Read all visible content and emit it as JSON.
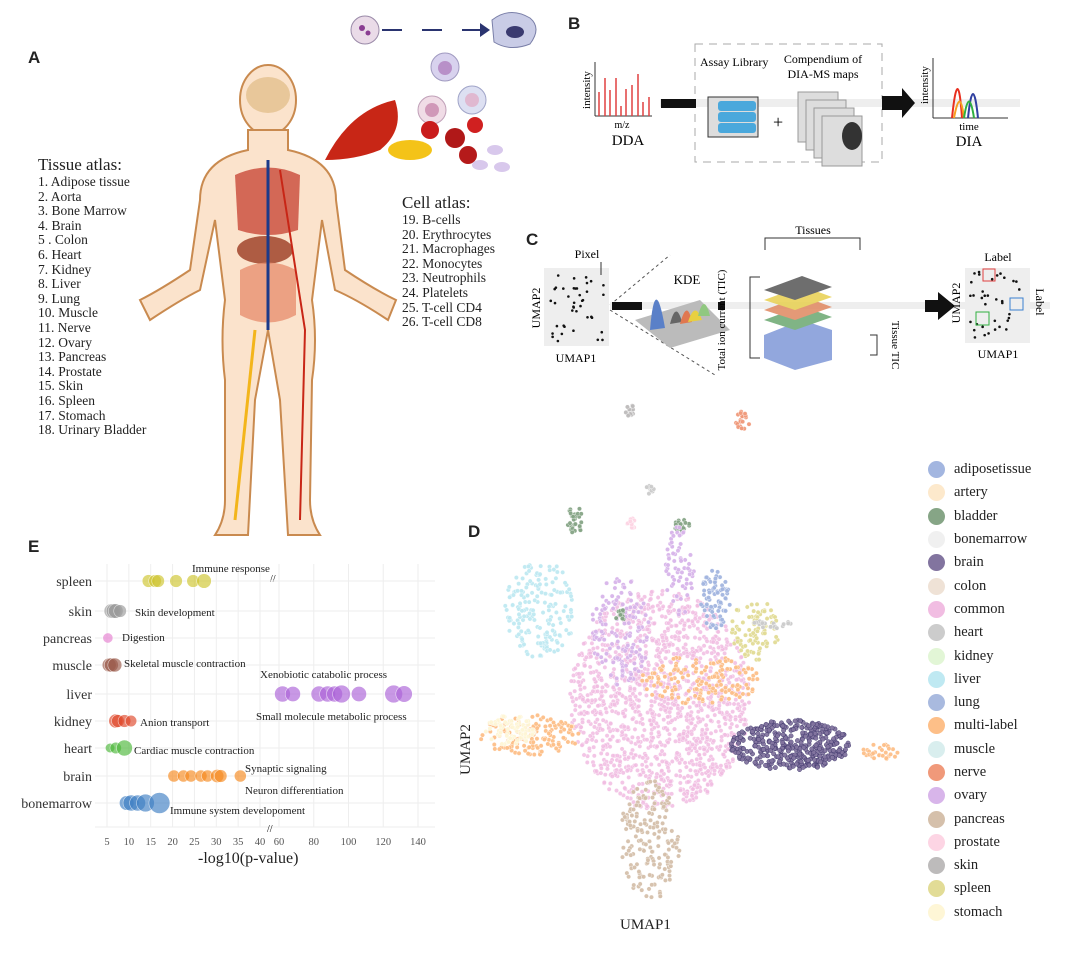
{
  "panel_labels": {
    "a": "A",
    "b": "B",
    "c": "C",
    "d": "D",
    "e": "E"
  },
  "tissue_atlas": {
    "title": "Tissue atlas:",
    "items": [
      "1.   Adipose tissue",
      "2.   Aorta",
      "3.   Bone Marrow",
      "4.   Brain",
      "5   . Colon",
      "6.   Heart",
      "7.   Kidney",
      "8.   Liver",
      "9.   Lung",
      "10. Muscle",
      "11. Nerve",
      "12. Ovary",
      "13. Pancreas",
      "14. Prostate",
      "15. Skin",
      "16. Spleen",
      "17. Stomach",
      "18. Urinary Bladder"
    ]
  },
  "cell_atlas": {
    "title": "Cell atlas:",
    "items": [
      "19. B-cells",
      "20. Erythrocytes",
      "21. Macrophages",
      "22. Monocytes",
      "23. Neutrophils",
      "24. Platelets",
      "25. T-cell CD4",
      "26. T-cell CD8"
    ]
  },
  "panel_b": {
    "dda_ylabel": "intensity",
    "dda_xlabel": "m/z",
    "dda_title": "DDA",
    "assay_library": "Assay Library",
    "compendium": "Compendium of",
    "compendium2": "DIA-MS maps",
    "dia_ylabel": "intensity",
    "dia_xlabel": "time",
    "dia_title": "DIA"
  },
  "panel_c": {
    "pixel": "Pixel",
    "umap1": "UMAP1",
    "umap2": "UMAP2",
    "kde": "KDE",
    "tissues": "Tissues",
    "tic": "Total ion current (TIC)",
    "tissue_tic": "Tissue TIC",
    "label_top": "Label",
    "label_side": "Label",
    "umap1_out": "UMAP1",
    "umap2_out": "UMAP2"
  },
  "panel_d": {
    "xlabel": "UMAP1",
    "ylabel": "UMAP2",
    "legend": [
      {
        "name": "adiposetissue",
        "color": "#a3b6e0"
      },
      {
        "name": "artery",
        "color": "#fde9cc"
      },
      {
        "name": "bladder",
        "color": "#86a586"
      },
      {
        "name": "bonemarrow",
        "color": "#f0f0f0"
      },
      {
        "name": "brain",
        "color": "#82749f"
      },
      {
        "name": "colon",
        "color": "#efe2d6"
      },
      {
        "name": "common",
        "color": "#f1bde2"
      },
      {
        "name": "heart",
        "color": "#cccccc"
      },
      {
        "name": "kidney",
        "color": "#e2f6d6"
      },
      {
        "name": "liver",
        "color": "#bfe9f2"
      },
      {
        "name": "lung",
        "color": "#a9badf"
      },
      {
        "name": "multi-label",
        "color": "#fdbf88"
      },
      {
        "name": "muscle",
        "color": "#d9eeee"
      },
      {
        "name": "nerve",
        "color": "#f0997a"
      },
      {
        "name": "ovary",
        "color": "#d8b5ea"
      },
      {
        "name": "pancreas",
        "color": "#d5c0ab"
      },
      {
        "name": "prostate",
        "color": "#fdd5e4"
      },
      {
        "name": "skin",
        "color": "#bdbbbb"
      },
      {
        "name": "spleen",
        "color": "#e2dc96"
      },
      {
        "name": "stomach",
        "color": "#fef6d6"
      }
    ]
  },
  "chart_data": {
    "type": "scatter",
    "xlabel": "-log10(p-value)",
    "axis_break": [
      40,
      60
    ],
    "x_ticks": [
      5,
      10,
      15,
      20,
      25,
      30,
      35,
      40,
      60,
      80,
      100,
      120,
      140
    ],
    "categories": [
      "spleen",
      "skin",
      "pancreas",
      "muscle",
      "liver",
      "kidney",
      "heart",
      "brain",
      "bonemarrow"
    ],
    "series": [
      {
        "category": "spleen",
        "color": "#cfc52e",
        "x": [
          14.5,
          16,
          16.7,
          20.8,
          24.7,
          27.2
        ],
        "size": [
          2,
          2,
          2,
          2,
          2,
          2.3
        ],
        "annotations": [
          "Immune response"
        ]
      },
      {
        "category": "skin",
        "color": "#9a9a9a",
        "x": [
          6,
          6.5,
          7,
          8
        ],
        "size": [
          2.3,
          2.3,
          2.3,
          2
        ],
        "annotations": [
          "Skin development"
        ]
      },
      {
        "category": "pancreas",
        "color": "#e57fd0",
        "x": [
          5.2
        ],
        "size": [
          1.6
        ],
        "annotations": [
          "Digestion"
        ]
      },
      {
        "category": "muscle",
        "color": "#9b5a4a",
        "x": [
          5.5,
          6,
          6.8
        ],
        "size": [
          2.2,
          2.2,
          2.2
        ],
        "annotations": [
          "Skeletal muscle contraction"
        ]
      },
      {
        "category": "liver",
        "color": "#ab62d8",
        "x": [
          62,
          68,
          83,
          88,
          92,
          96,
          106,
          126,
          132
        ],
        "size": [
          2.5,
          2.4,
          2.5,
          2.5,
          2.5,
          2.8,
          2.4,
          2.8,
          2.6
        ],
        "annotations": [
          "Xenobiotic catabolic process",
          "Small molecule metabolic process"
        ]
      },
      {
        "category": "kidney",
        "color": "#e0482a",
        "x": [
          7,
          7.5,
          9,
          10.5
        ],
        "size": [
          2.2,
          2,
          2,
          1.8
        ],
        "annotations": [
          "Anion transport"
        ]
      },
      {
        "category": "heart",
        "color": "#4cb83a",
        "x": [
          5.7,
          7,
          9
        ],
        "size": [
          1.5,
          1.8,
          2.5
        ],
        "annotations": [
          "Cardiac muscle contraction"
        ]
      },
      {
        "category": "brain",
        "color": "#f78a1e",
        "x": [
          20.3,
          22.5,
          24.2,
          26.5,
          28,
          30.2,
          31,
          35.5
        ],
        "size": [
          1.9,
          1.9,
          1.9,
          1.9,
          1.9,
          2.1,
          2,
          1.9
        ],
        "annotations": [
          "Synaptic signaling",
          "Neuron differentiation"
        ]
      },
      {
        "category": "bonemarrow",
        "color": "#3f7fc4",
        "x": [
          9.5,
          10.5,
          12,
          13.8,
          17
        ],
        "size": [
          2.3,
          2.5,
          2.5,
          2.8,
          3.3
        ],
        "annotations": [
          "Immune system developoment"
        ]
      }
    ]
  }
}
